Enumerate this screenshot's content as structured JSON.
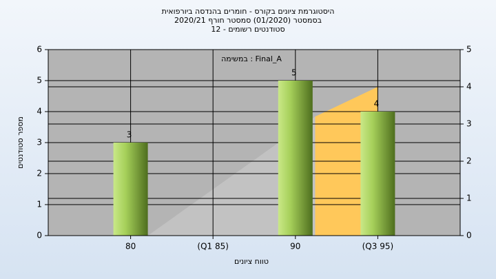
{
  "chart_data": {
    "type": "bar",
    "title": "היסטוגרמת ציונים בקורס - חומרים בהנדסה ביורפואית",
    "subtitle": "בסמסטר  (01/2020)  סמסטר חורף 2020/21",
    "subtitle2": "סטודנטים רשומים - 12",
    "annotation": "במשימה : Final_A",
    "x_label": "טווח ציונים",
    "y_label": "מספר סטודנטים",
    "categories": [
      "80",
      "(Q1 85)",
      "90",
      "(Q3 95)"
    ],
    "values": [
      3,
      0,
      5,
      4
    ],
    "color": "#8fbf3a",
    "ylim": [
      0,
      6
    ],
    "yticks": [
      0,
      1,
      2,
      3,
      4,
      5,
      6
    ],
    "y2lim": [
      0,
      5
    ],
    "y2ticks": [
      0,
      1,
      2,
      3,
      4,
      5
    ],
    "areas": [
      {
        "color": "#c2c2c2",
        "axis": "y2",
        "x": [
          0.21,
          2.24
        ],
        "values": [
          0,
          3.2
        ]
      },
      {
        "color": "#ffc85a",
        "axis": "y2",
        "x": [
          2.24,
          3.0
        ],
        "values": [
          3.2,
          4.0
        ]
      }
    ],
    "grid": true
  }
}
